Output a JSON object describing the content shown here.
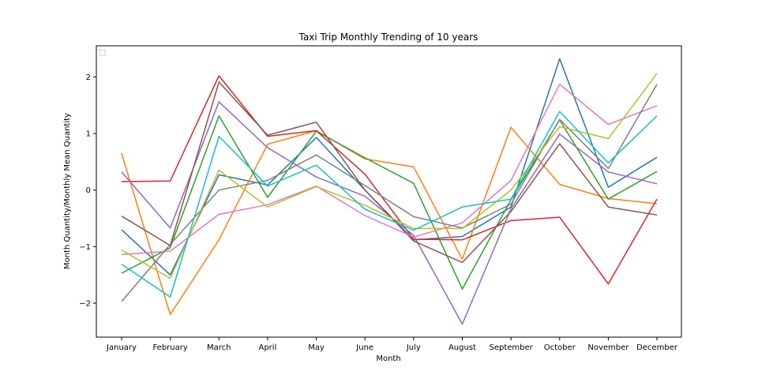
{
  "chart_data": {
    "type": "line",
    "title": "Taxi Trip Monthly Trending of 10 years",
    "xlabel": "Month",
    "ylabel": "Month Quantity/Monthly Mean Quantity",
    "categories": [
      "January",
      "February",
      "March",
      "April",
      "May",
      "June",
      "July",
      "August",
      "September",
      "October",
      "November",
      "December"
    ],
    "ylim": [
      -2.6,
      2.55
    ],
    "yticks": [
      -2,
      -1,
      0,
      1,
      2
    ],
    "ytick_labels": [
      "−2",
      "−1",
      "0",
      "1",
      "2"
    ],
    "grid": false,
    "legend": "top-left (empty)",
    "series": [
      {
        "color": "#1f77b4",
        "values": [
          -0.7,
          -1.5,
          0.27,
          0.09,
          0.93,
          0.0,
          -0.88,
          -0.82,
          -0.3,
          2.32,
          0.05,
          0.58
        ]
      },
      {
        "color": "#ff7f0e",
        "values": [
          0.65,
          -2.2,
          -0.88,
          0.81,
          1.05,
          0.55,
          0.41,
          -1.22,
          1.11,
          0.1,
          -0.15,
          -0.24
        ]
      },
      {
        "color": "#2ca02c",
        "values": [
          -1.47,
          -1.02,
          1.31,
          -0.13,
          1.04,
          0.57,
          0.12,
          -1.75,
          -0.17,
          1.24,
          -0.16,
          0.33
        ]
      },
      {
        "color": "#d62728",
        "values": [
          0.15,
          0.16,
          2.02,
          0.95,
          1.05,
          0.28,
          -0.87,
          -0.88,
          -0.54,
          -0.48,
          -1.66,
          -0.16
        ]
      },
      {
        "color": "#9467bd",
        "values": [
          0.32,
          -0.67,
          1.56,
          0.75,
          0.23,
          -0.11,
          -0.8,
          -2.37,
          -0.33,
          0.99,
          0.32,
          0.11
        ]
      },
      {
        "color": "#8c564b",
        "values": [
          -0.46,
          -0.98,
          1.91,
          0.97,
          1.2,
          0.0,
          -0.9,
          -1.28,
          -0.38,
          0.82,
          -0.3,
          -0.44
        ]
      },
      {
        "color": "#e377c2",
        "values": [
          -1.14,
          -1.08,
          -0.43,
          -0.26,
          0.07,
          -0.45,
          -0.83,
          -0.58,
          0.17,
          1.87,
          1.16,
          1.49
        ]
      },
      {
        "color": "#7f7f7f",
        "values": [
          -1.97,
          -0.96,
          0.0,
          0.17,
          0.62,
          0.08,
          -0.47,
          -0.67,
          -0.25,
          1.25,
          0.38,
          1.87
        ]
      },
      {
        "color": "#bcbd22",
        "values": [
          -1.06,
          -1.56,
          0.35,
          -0.3,
          0.06,
          -0.27,
          -0.68,
          -0.68,
          0.0,
          1.12,
          0.91,
          2.06
        ]
      },
      {
        "color": "#17becf",
        "values": [
          -1.31,
          -1.89,
          0.95,
          0.07,
          0.44,
          -0.34,
          -0.71,
          -0.3,
          -0.16,
          1.39,
          0.48,
          1.31
        ]
      }
    ]
  }
}
